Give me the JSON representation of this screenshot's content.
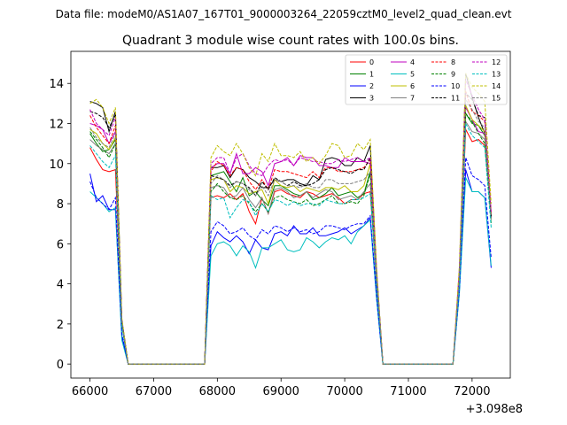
{
  "suptitle": "Data file: modeM0/AS1A07_167T01_9000003264_22059cztM0_level2_quad_clean.evt",
  "chart_data": {
    "type": "line",
    "title": "Quadrant 3 module wise count rates with 100.0s bins.",
    "xlabel": "",
    "ylabel": "",
    "x_offset_label": "+3.098e8",
    "xlim": [
      65700,
      72600
    ],
    "ylim": [
      -0.7,
      15.6
    ],
    "xticks": [
      66000,
      67000,
      68000,
      69000,
      70000,
      71000,
      72000
    ],
    "yticks": [
      0,
      2,
      4,
      6,
      8,
      10,
      12,
      14
    ],
    "legend_position": "top-right",
    "x": [
      66000,
      66100,
      66200,
      66300,
      66400,
      66500,
      66600,
      66700,
      66800,
      67800,
      67900,
      68000,
      68100,
      68200,
      68300,
      68400,
      68500,
      68600,
      68700,
      68800,
      68900,
      69000,
      69100,
      69200,
      69300,
      69400,
      69500,
      69600,
      69700,
      69800,
      69900,
      70000,
      70100,
      70200,
      70300,
      70400,
      70500,
      70600,
      70700,
      71700,
      71800,
      71900,
      72000,
      72100,
      72200,
      72300
    ],
    "series": [
      {
        "name": "0",
        "color": "#ff0000",
        "dash": "solid",
        "values": [
          10.8,
          10.2,
          9.7,
          9.6,
          9.7,
          2.0,
          0,
          0,
          0,
          0,
          8.3,
          8.4,
          8.3,
          8.5,
          8.2,
          8.5,
          7.6,
          7.0,
          8.3,
          7.5,
          8.6,
          8.7,
          8.5,
          8.4,
          8.3,
          8.6,
          8.5,
          8.3,
          8.4,
          8.5,
          8.3,
          8.0,
          8.2,
          8.2,
          8.5,
          8.6,
          4.0,
          0,
          0,
          0,
          4.0,
          11.7,
          11.1,
          11.2,
          10.9,
          7.5
        ]
      },
      {
        "name": "1",
        "color": "#008000",
        "dash": "solid",
        "values": [
          11.5,
          11.0,
          10.6,
          10.7,
          11.2,
          2.0,
          0,
          0,
          0,
          0,
          9.4,
          9.5,
          9.6,
          9.1,
          8.6,
          9.3,
          8.4,
          8.6,
          8.2,
          7.9,
          8.9,
          8.9,
          8.7,
          8.5,
          8.4,
          8.6,
          8.2,
          8.3,
          8.5,
          8.8,
          8.4,
          8.5,
          8.6,
          8.3,
          8.5,
          9.6,
          4.0,
          0,
          0,
          0,
          4.0,
          12.5,
          12.0,
          11.9,
          11.4,
          7.4
        ]
      },
      {
        "name": "2",
        "color": "#0000ff",
        "dash": "solid",
        "values": [
          9.5,
          8.1,
          8.4,
          7.7,
          7.7,
          1.4,
          0,
          0,
          0,
          0,
          5.9,
          6.6,
          6.3,
          6.1,
          6.4,
          6.1,
          5.5,
          6.2,
          5.8,
          5.7,
          6.5,
          6.6,
          6.4,
          6.9,
          6.5,
          6.5,
          6.8,
          6.4,
          6.4,
          6.5,
          6.6,
          6.8,
          6.5,
          6.7,
          6.9,
          7.3,
          3.3,
          0,
          0,
          0,
          3.6,
          9.7,
          8.6,
          8.6,
          8.3,
          4.8
        ]
      },
      {
        "name": "3",
        "color": "#000000",
        "dash": "solid",
        "values": [
          13.1,
          13.0,
          12.8,
          11.6,
          12.6,
          2.2,
          0,
          0,
          0,
          0,
          9.8,
          9.8,
          9.9,
          9.3,
          9.8,
          9.7,
          9.3,
          9.1,
          8.8,
          8.8,
          9.2,
          9.1,
          9.2,
          9.2,
          9.0,
          8.9,
          9.4,
          9.2,
          10.2,
          10.3,
          10.2,
          9.9,
          9.9,
          10.3,
          10.1,
          10.9,
          4.7,
          0,
          0,
          0,
          4.4,
          14.5,
          13.3,
          12.3,
          11.5,
          7.3
        ]
      },
      {
        "name": "4",
        "color": "#bf00bf",
        "dash": "solid",
        "values": [
          12.0,
          11.9,
          11.7,
          11.0,
          11.6,
          2.2,
          0,
          0,
          0,
          0,
          9.8,
          10.0,
          10.0,
          9.5,
          10.5,
          9.5,
          9.5,
          9.8,
          9.6,
          8.9,
          10.0,
          10.1,
          10.3,
          9.9,
          10.4,
          10.3,
          10.3,
          9.9,
          9.9,
          9.8,
          9.8,
          10.3,
          10.1,
          10.1,
          10.1,
          10.0,
          4.6,
          0,
          0,
          0,
          4.7,
          12.8,
          12.2,
          11.6,
          11.5,
          7.3
        ]
      },
      {
        "name": "5",
        "color": "#00bfbf",
        "dash": "solid",
        "values": [
          8.6,
          8.3,
          8.0,
          7.6,
          7.8,
          1.2,
          0,
          0,
          0,
          0,
          5.4,
          6.0,
          6.1,
          5.9,
          5.4,
          5.9,
          5.6,
          4.8,
          5.8,
          5.8,
          6.0,
          6.2,
          5.7,
          5.6,
          5.7,
          6.3,
          6.1,
          5.8,
          6.1,
          6.3,
          6.2,
          6.4,
          6.0,
          6.6,
          6.9,
          7.2,
          3.3,
          0,
          0,
          0,
          3.5,
          9.3,
          8.6,
          8.6,
          8.3,
          4.9
        ]
      },
      {
        "name": "6",
        "color": "#bfbf00",
        "dash": "solid",
        "values": [
          11.7,
          11.5,
          11.0,
          10.7,
          11.3,
          2.0,
          0,
          0,
          0,
          0,
          9.2,
          9.3,
          9.2,
          8.6,
          8.9,
          8.8,
          8.5,
          8.6,
          8.7,
          8.0,
          9.2,
          8.9,
          8.8,
          8.9,
          8.6,
          8.8,
          8.7,
          8.6,
          8.8,
          8.8,
          8.7,
          8.9,
          8.6,
          8.6,
          8.9,
          10.0,
          4.4,
          0,
          0,
          0,
          4.4,
          12.9,
          12.2,
          11.9,
          11.6,
          7.5
        ]
      },
      {
        "name": "7",
        "color": "#808080",
        "dash": "solid",
        "values": [
          11.2,
          10.9,
          10.7,
          10.5,
          11.0,
          2.0,
          0,
          0,
          0,
          0,
          8.8,
          8.9,
          8.8,
          8.3,
          8.4,
          8.8,
          8.2,
          7.8,
          8.3,
          7.5,
          8.7,
          8.8,
          8.6,
          8.3,
          8.4,
          8.6,
          8.3,
          8.5,
          8.7,
          8.6,
          8.2,
          8.3,
          8.4,
          8.2,
          8.6,
          9.0,
          4.1,
          0,
          0,
          0,
          4.1,
          12.1,
          11.6,
          11.5,
          11.2,
          7.2
        ]
      },
      {
        "name": "8",
        "color": "#ff0000",
        "dash": "dashed",
        "values": [
          12.4,
          11.8,
          11.4,
          11.0,
          11.9,
          2.1,
          0,
          0,
          0,
          0,
          9.6,
          10.1,
          9.9,
          9.4,
          9.8,
          9.7,
          9.1,
          8.7,
          9.2,
          8.7,
          9.7,
          9.6,
          9.6,
          9.5,
          9.4,
          9.3,
          9.6,
          9.3,
          9.8,
          9.8,
          9.6,
          9.6,
          9.6,
          9.7,
          9.8,
          10.2,
          4.6,
          0,
          0,
          0,
          4.5,
          13.6,
          12.6,
          12.4,
          12.1,
          7.5
        ]
      },
      {
        "name": "9",
        "color": "#008000",
        "dash": "dashed",
        "values": [
          11.6,
          11.2,
          10.8,
          10.3,
          11.0,
          2.0,
          0,
          0,
          0,
          0,
          8.6,
          9.0,
          8.6,
          8.3,
          8.2,
          8.4,
          8.0,
          7.6,
          8.0,
          7.6,
          8.3,
          8.4,
          8.2,
          8.1,
          8.0,
          8.2,
          7.9,
          8.0,
          8.2,
          8.4,
          8.0,
          8.0,
          8.1,
          8.0,
          8.4,
          9.5,
          4.1,
          0,
          0,
          0,
          4.0,
          12.5,
          12.1,
          11.5,
          11.0,
          7.0
        ]
      },
      {
        "name": "10",
        "color": "#0000ff",
        "dash": "dashed",
        "values": [
          9.1,
          8.3,
          8.0,
          7.7,
          8.3,
          1.5,
          0,
          0,
          0,
          0,
          6.6,
          7.1,
          6.9,
          6.5,
          6.6,
          6.8,
          6.4,
          6.2,
          6.7,
          6.5,
          6.9,
          6.8,
          6.6,
          6.8,
          6.6,
          6.7,
          6.5,
          6.6,
          6.9,
          6.9,
          6.8,
          6.7,
          6.9,
          7.0,
          7.0,
          7.4,
          3.5,
          0,
          0,
          0,
          3.7,
          10.3,
          9.4,
          9.2,
          8.9,
          5.3
        ]
      },
      {
        "name": "11",
        "color": "#000000",
        "dash": "dashed",
        "values": [
          12.6,
          12.5,
          12.3,
          11.8,
          12.4,
          2.2,
          0,
          0,
          0,
          0,
          9.4,
          9.3,
          9.2,
          8.9,
          9.1,
          9.0,
          8.8,
          8.4,
          9.1,
          8.7,
          9.3,
          9.1,
          8.9,
          9.1,
          8.9,
          8.9,
          9.0,
          9.2,
          9.7,
          9.8,
          9.7,
          9.6,
          9.5,
          9.7,
          9.7,
          10.3,
          4.6,
          0,
          0,
          0,
          4.4,
          13.5,
          13.2,
          12.4,
          12.3,
          7.3
        ]
      },
      {
        "name": "12",
        "color": "#bf00bf",
        "dash": "dashed",
        "values": [
          12.7,
          12.0,
          11.7,
          11.4,
          12.3,
          2.2,
          0,
          0,
          0,
          0,
          10.0,
          10.3,
          10.3,
          9.5,
          10.3,
          10.5,
          9.9,
          9.5,
          9.4,
          9.9,
          10.2,
          10.1,
          10.2,
          9.9,
          10.3,
          10.2,
          10.1,
          10.1,
          10.0,
          10.0,
          10.2,
          10.1,
          10.2,
          10.3,
          10.1,
          10.3,
          4.7,
          0,
          0,
          0,
          4.7,
          14.2,
          13.4,
          12.7,
          12.2,
          7.6
        ]
      },
      {
        "name": "13",
        "color": "#00bfbf",
        "dash": "dashed",
        "values": [
          10.9,
          10.5,
          10.1,
          9.8,
          10.4,
          1.9,
          0,
          0,
          0,
          0,
          8.4,
          8.2,
          8.3,
          7.3,
          7.8,
          8.2,
          8.1,
          7.4,
          8.0,
          7.6,
          8.2,
          8.1,
          7.9,
          8.1,
          7.9,
          8.0,
          8.0,
          7.9,
          8.2,
          8.1,
          8.0,
          8.0,
          8.2,
          8.2,
          8.3,
          8.5,
          4.1,
          0,
          0,
          0,
          4.0,
          12.0,
          11.4,
          11.1,
          10.8,
          6.8
        ]
      },
      {
        "name": "14",
        "color": "#bfbf00",
        "dash": "dashed",
        "values": [
          13.0,
          13.2,
          12.8,
          12.0,
          12.8,
          2.3,
          0,
          0,
          0,
          0,
          10.3,
          10.9,
          10.6,
          10.4,
          11.0,
          10.5,
          9.8,
          9.4,
          10.5,
          10.1,
          11.0,
          10.4,
          10.4,
          10.3,
          10.6,
          10.1,
          10.3,
          10.0,
          10.4,
          11.0,
          10.9,
          10.3,
          10.4,
          11.0,
          10.7,
          11.2,
          4.9,
          0,
          0,
          0,
          4.9,
          14.5,
          13.8,
          13.5,
          13.1,
          8.0
        ]
      },
      {
        "name": "15",
        "color": "#808080",
        "dash": "dashed",
        "values": [
          11.8,
          11.3,
          11.0,
          10.8,
          11.5,
          2.1,
          0,
          0,
          0,
          0,
          9.0,
          9.4,
          9.2,
          8.8,
          9.1,
          9.0,
          8.7,
          8.4,
          8.9,
          8.4,
          9.2,
          9.1,
          8.9,
          8.9,
          8.8,
          9.0,
          8.8,
          8.8,
          9.2,
          9.2,
          9.0,
          9.0,
          9.0,
          9.1,
          9.2,
          9.6,
          4.4,
          0,
          0,
          0,
          4.3,
          13.2,
          12.7,
          12.1,
          11.8,
          7.3
        ]
      }
    ]
  }
}
